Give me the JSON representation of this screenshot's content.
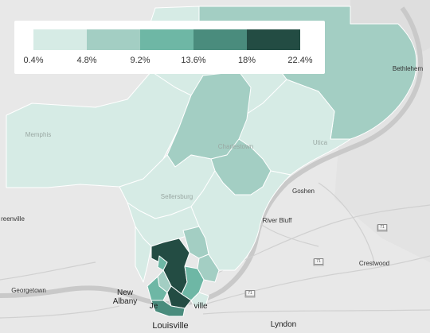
{
  "legend": {
    "colors": [
      "#d6ebe5",
      "#a3cec3",
      "#6eb7a5",
      "#4a8c7d",
      "#234c43"
    ],
    "labels": [
      "0.4%",
      "4.8%",
      "9.2%",
      "13.6%",
      "18%",
      "22.4%"
    ]
  },
  "places": {
    "goshen": "Goshen",
    "river_bluff": "River Bluff",
    "crestwood": "Crestwood",
    "lyndon": "Lyndon",
    "louisville": "Louisville",
    "jeffersonville_fragment": "Je",
    "jeffersonville_suffix": "ville",
    "new_albany_line1": "New",
    "new_albany_line2": "Albany",
    "georgetown": "Georgetown",
    "greenville_fragment": "reenville",
    "bethlehem_fragment": "Bethlehem",
    "utica_fragment": "Utica",
    "charlestown": "Charlestown",
    "sellersburg": "Sellersburg",
    "memphis_fragment": "Memphis"
  },
  "roads": {
    "i71_a": "71",
    "i71_b": "71",
    "i71_c": "71"
  }
}
